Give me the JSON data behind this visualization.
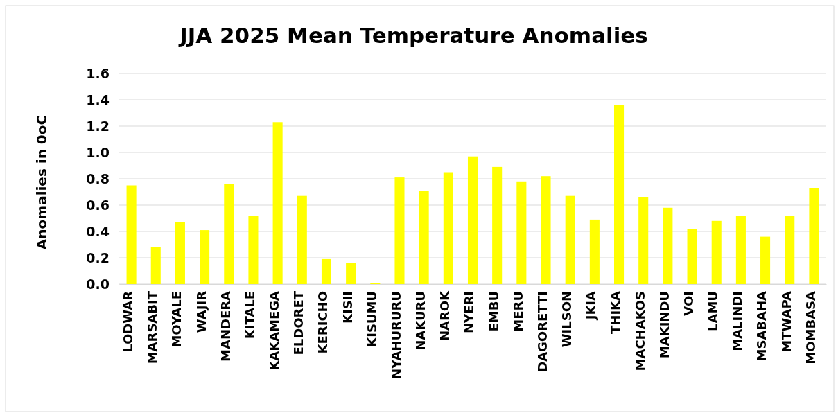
{
  "chart_data": {
    "type": "bar",
    "title": "JJA 2025 Mean Temperature Anomalies",
    "ylabel": "Anomalies in 0oC",
    "categories": [
      "LODWAR",
      "MARSABIT",
      "MOYALE",
      "WAJIR",
      "MANDERA",
      "KITALE",
      "KAKAMEGA",
      "ELDORET",
      "KERICHO",
      "KISII",
      "KISUMU",
      "NYAHURURU",
      "NAKURU",
      "NAROK",
      "NYERI",
      "EMBU",
      "MERU",
      "DAGORETTI",
      "WILSON",
      "JKIA",
      "THIKA",
      "MACHAKOS",
      "MAKINDU",
      "VOI",
      "LAMU",
      "MALINDI",
      "MSABAHA",
      "MTWAPA",
      "MOMBASA"
    ],
    "values": [
      0.75,
      0.28,
      0.47,
      0.41,
      0.76,
      0.52,
      1.23,
      0.67,
      0.19,
      0.16,
      0.01,
      0.81,
      0.71,
      0.85,
      0.97,
      0.89,
      0.78,
      0.82,
      0.67,
      0.49,
      1.36,
      0.66,
      0.58,
      0.42,
      0.48,
      0.52,
      0.36,
      0.52,
      0.73
    ],
    "color": "#ffff00",
    "ylim": [
      0,
      1.6
    ],
    "yticks": [
      {
        "value": 0,
        "label": "0.0"
      },
      0.2,
      0.4,
      0.6,
      0.8,
      {
        "value": 1,
        "label": "1.0"
      },
      1.2,
      1.4,
      1.6
    ],
    "grid": "y"
  }
}
